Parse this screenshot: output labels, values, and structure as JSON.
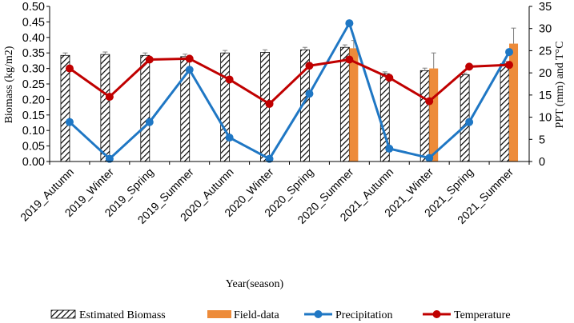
{
  "chart_data": {
    "type": "bar",
    "categories": [
      "2019_Autumn",
      "2019_Winter",
      "2019_Spring",
      "2019_Summer",
      "2020_Autumn",
      "2020_Winter",
      "2020_Spring",
      "2020_Summer",
      "2021_Autumn",
      "2021_Winter",
      "2021_Spring",
      "2021_Summer"
    ],
    "xlabel": "Year(season)",
    "ylabel": "Biomass (kg/m2)",
    "y2label": "PPT (mm) and T°C",
    "ylim": [
      0,
      0.5
    ],
    "y2lim": [
      0,
      35
    ],
    "yticks": [
      "0.00",
      "0.05",
      "0.10",
      "0.15",
      "0.20",
      "0.25",
      "0.30",
      "0.35",
      "0.40",
      "0.45",
      "0.50"
    ],
    "y2ticks": [
      "0",
      "5",
      "10",
      "15",
      "20",
      "25",
      "30",
      "35"
    ],
    "legend_position": "bottom",
    "bar_series": [
      {
        "name": "Estimated Biomass",
        "pattern": "diagonal-hatch",
        "values": [
          0.342,
          0.345,
          0.342,
          0.338,
          0.35,
          0.352,
          0.36,
          0.368,
          0.283,
          0.293,
          0.28,
          0.315
        ],
        "errors": [
          0.008,
          0.008,
          0.008,
          0.008,
          0.008,
          0.008,
          0.008,
          0.008,
          0.006,
          0.008,
          0.005,
          0.008
        ]
      },
      {
        "name": "Field-data",
        "color": "#ED8B3A",
        "values": [
          null,
          null,
          null,
          null,
          null,
          null,
          null,
          0.365,
          null,
          0.3,
          null,
          0.38
        ],
        "errors": [
          null,
          null,
          null,
          null,
          null,
          null,
          null,
          0.025,
          null,
          0.05,
          null,
          0.05
        ]
      }
    ],
    "line_series": [
      {
        "name": "Precipitation",
        "color": "#1F77C4",
        "axis": "right",
        "values": [
          8.9,
          0.6,
          8.9,
          20.7,
          5.4,
          0.6,
          15.3,
          31.2,
          2.9,
          0.8,
          8.9,
          24.7
        ]
      },
      {
        "name": "Temperature",
        "color": "#C00000",
        "axis": "right",
        "values": [
          21.0,
          14.6,
          23.0,
          23.2,
          18.5,
          13.0,
          21.6,
          23.0,
          18.9,
          13.6,
          21.4,
          21.8
        ]
      }
    ]
  }
}
